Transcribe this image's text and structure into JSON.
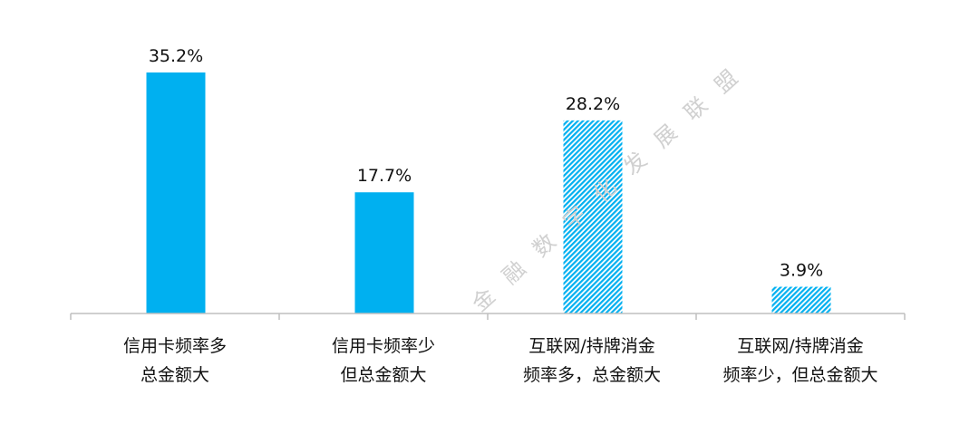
{
  "chart_data": {
    "type": "bar",
    "title": "",
    "xlabel": "",
    "ylabel": "",
    "ylim": [
      0,
      35.2
    ],
    "grid": false,
    "legend": "none",
    "categories": [
      [
        "信用卡频率多",
        "总金额大"
      ],
      [
        "信用卡频率少",
        "但总金额大"
      ],
      [
        "互联网/持牌消金",
        "频率多，总金额大"
      ],
      [
        "互联网/持牌消金",
        "频率少，但总金额大"
      ]
    ],
    "values": [
      35.2,
      17.7,
      28.2,
      3.9
    ],
    "data_labels": [
      "35.2%",
      "17.7%",
      "28.2%",
      "3.9%"
    ],
    "bar_styles": [
      "solid",
      "solid",
      "hatched",
      "hatched"
    ],
    "colors": {
      "bar": "#00B0F0",
      "axis": "#BFBFBF",
      "text": "#111111"
    }
  },
  "watermark": "金融数字化发展联盟"
}
